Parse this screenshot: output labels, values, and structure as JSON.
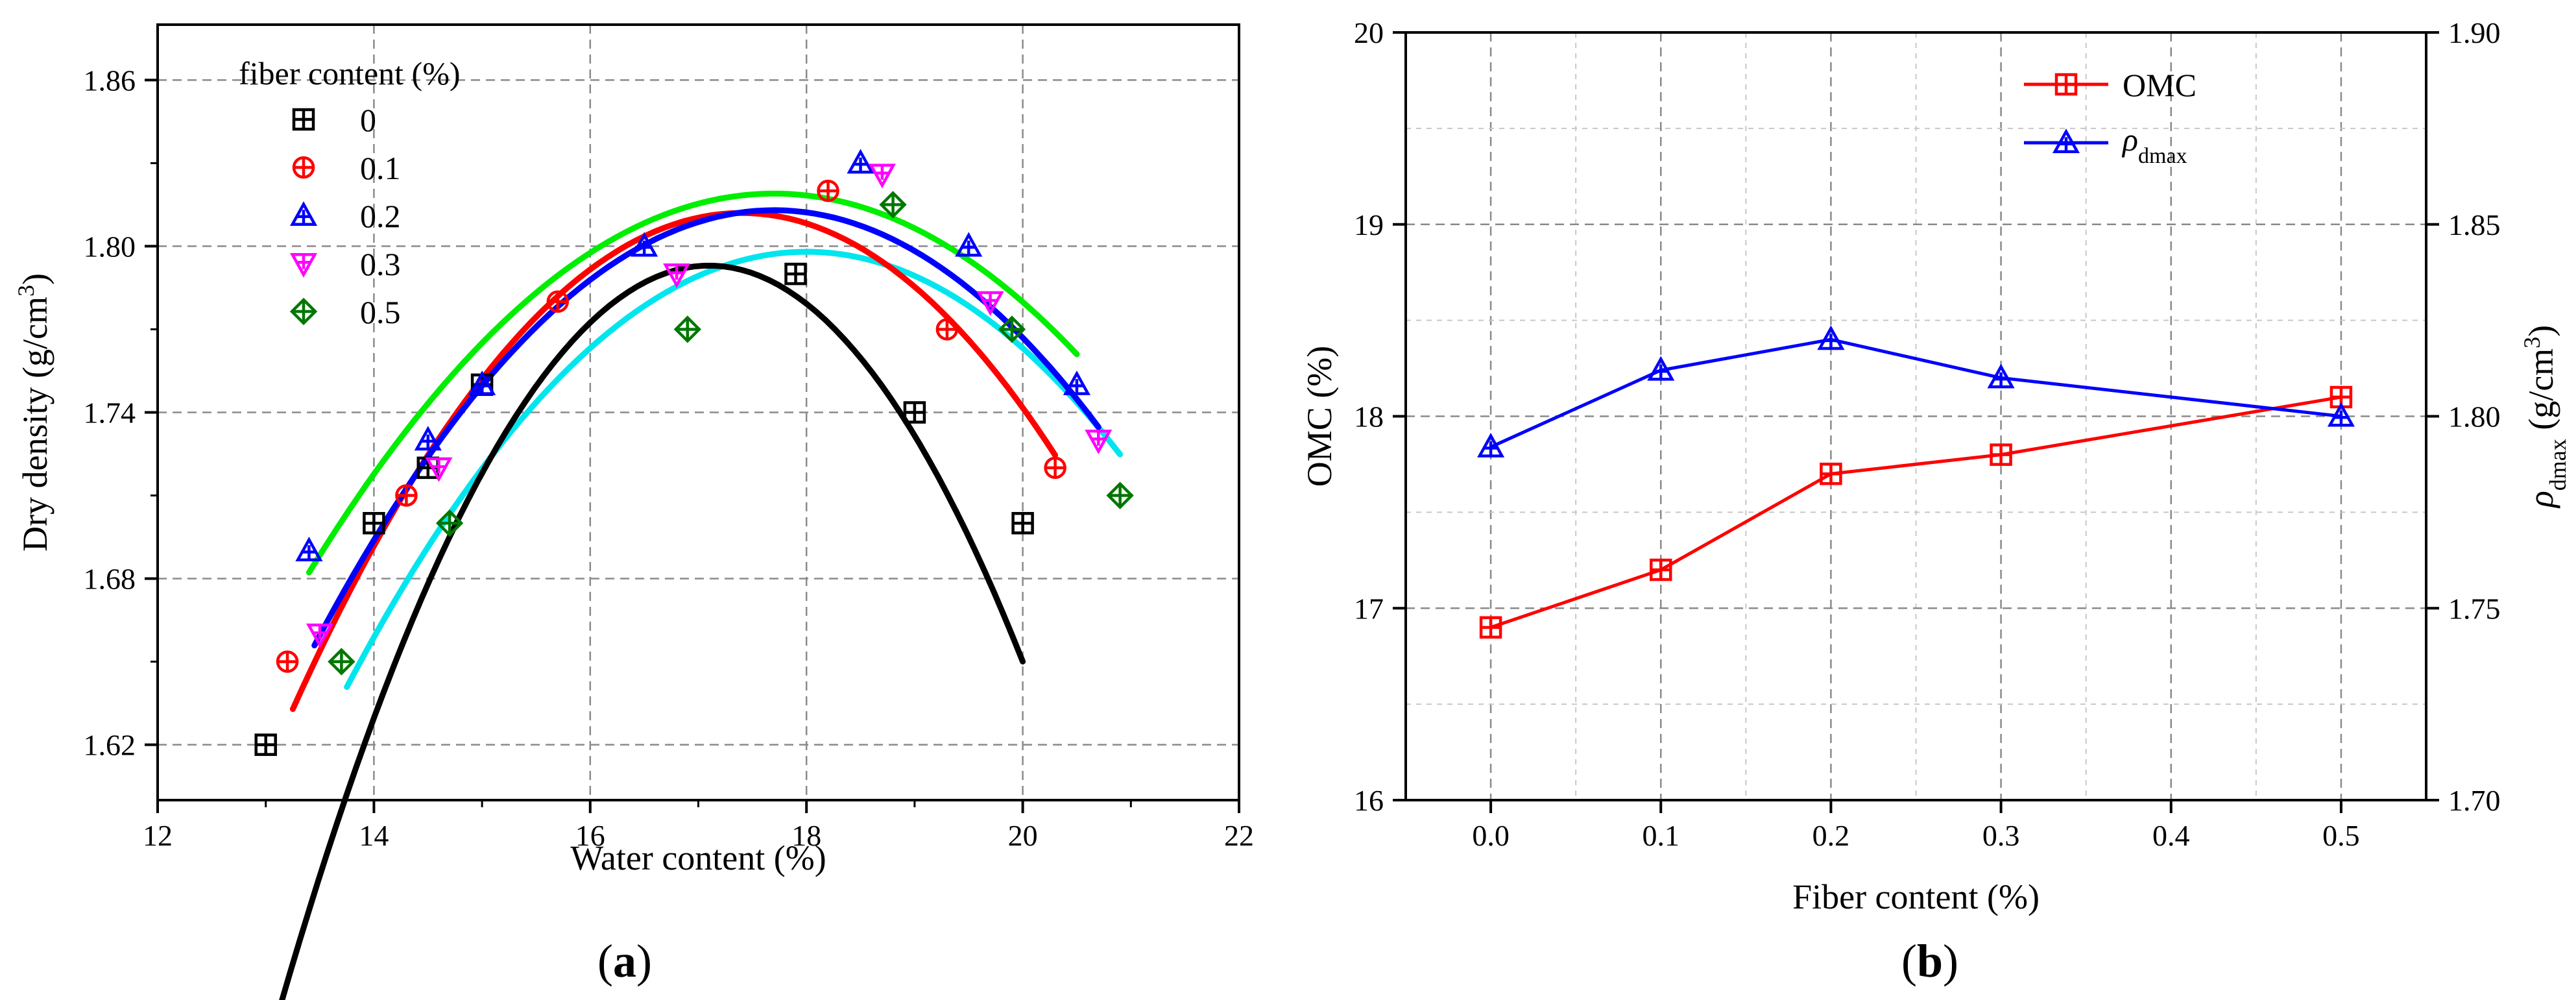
{
  "chart_data": [
    {
      "panel": "(a)",
      "type": "scatter",
      "panel_label": {
        "open": "(",
        "letter": "a",
        "close": ")"
      },
      "xlabel": "Water content (%)",
      "ylabel": {
        "main": "Dry density (g/cm",
        "sup": "3",
        "close": ")"
      },
      "xlim": [
        12,
        22
      ],
      "ylim": [
        1.6,
        1.88
      ],
      "xticks": [
        12,
        14,
        16,
        18,
        20,
        22
      ],
      "xtick_labels": [
        "12",
        "14",
        "16",
        "18",
        "20",
        "22"
      ],
      "yticks": [
        1.62,
        1.68,
        1.74,
        1.8,
        1.86
      ],
      "ytick_labels": [
        "1.62",
        "1.68",
        "1.74",
        "1.80",
        "1.86"
      ],
      "grid": true,
      "legend": {
        "title": "fiber content (%)",
        "position": "top-left"
      },
      "series": [
        {
          "name": "0",
          "label": "0",
          "color": "#000000",
          "marker": "square-plus",
          "x": [
            13.0,
            14.0,
            14.5,
            15.0,
            17.9,
            19.0,
            20.0
          ],
          "y": [
            1.62,
            1.7,
            1.72,
            1.75,
            1.79,
            1.74,
            1.7
          ],
          "fit": {
            "x_range": [
              13.05,
              20.0
            ],
            "peak_x": 17.1,
            "peak_y": 1.793,
            "curvature": -0.017
          }
        },
        {
          "name": "0.1",
          "label": "0.1",
          "color": "#ff0000",
          "marker": "circle-plus",
          "x": [
            13.2,
            14.3,
            15.7,
            18.2,
            19.3,
            20.3
          ],
          "y": [
            1.65,
            1.71,
            1.78,
            1.82,
            1.77,
            1.72
          ],
          "fit": {
            "x_range": [
              13.25,
              20.3
            ],
            "peak_x": 17.4,
            "peak_y": 1.812,
            "curvature": -0.0104
          }
        },
        {
          "name": "0.2",
          "label": "0.2",
          "color": "#0000ff",
          "marker": "triangle-up-plus",
          "x": [
            13.4,
            14.5,
            15.0,
            16.5,
            18.5,
            19.5,
            20.5
          ],
          "y": [
            1.69,
            1.73,
            1.75,
            1.8,
            1.83,
            1.8,
            1.75
          ],
          "fit": {
            "x_range": [
              13.45,
              20.7
            ],
            "peak_x": 17.7,
            "peak_y": 1.813,
            "curvature": -0.0087
          }
        },
        {
          "name": "0.3",
          "label": "0.3",
          "color": "#ff00ff",
          "marker": "triangle-down-plus",
          "x": [
            13.5,
            14.6,
            16.8,
            18.7,
            19.7,
            20.7
          ],
          "y": [
            1.66,
            1.72,
            1.79,
            1.826,
            1.78,
            1.73
          ],
          "fit": null
        },
        {
          "name": "0.5",
          "label": "0.5",
          "color": "#007700",
          "marker": "diamond-plus",
          "x": [
            13.7,
            14.7,
            16.9,
            18.8,
            19.9,
            20.9
          ],
          "y": [
            1.65,
            1.7,
            1.77,
            1.815,
            1.77,
            1.71
          ],
          "fit": null
        }
      ],
      "extra_fits": [
        {
          "color": "#00ee00",
          "x_range": [
            13.4,
            20.5
          ],
          "peak_x": 17.7,
          "peak_y": 1.819,
          "curvature": -0.0074
        },
        {
          "color": "#00e5ee",
          "x_range": [
            13.75,
            20.9
          ],
          "peak_x": 18.0,
          "peak_y": 1.798,
          "curvature": -0.0087
        }
      ]
    },
    {
      "panel": "(b)",
      "type": "line",
      "panel_label": {
        "open": "(",
        "letter": "b",
        "close": ")"
      },
      "xlabel": "Fiber content (%)",
      "ylabel": "OMC (%)",
      "y2label": {
        "rho": "ρ",
        "sub": "dmax",
        "unit": " (g/cm",
        "sup": "3",
        "close": ")"
      },
      "xlim": [
        -0.05,
        0.55
      ],
      "ylim": [
        16,
        20
      ],
      "y2lim": [
        1.7,
        1.9
      ],
      "xticks": [
        0.0,
        0.1,
        0.2,
        0.3,
        0.4,
        0.5
      ],
      "xtick_labels": [
        "0.0",
        "0.1",
        "0.2",
        "0.3",
        "0.4",
        "0.5"
      ],
      "yticks": [
        16,
        17,
        18,
        19,
        20
      ],
      "ytick_labels": [
        "16",
        "17",
        "18",
        "19",
        "20"
      ],
      "y2ticks": [
        1.7,
        1.75,
        1.8,
        1.85,
        1.9
      ],
      "y2tick_labels": [
        "1.70",
        "1.75",
        "1.80",
        "1.85",
        "1.90"
      ],
      "grid": true,
      "legend": {
        "position": "top-right"
      },
      "series": [
        {
          "name": "OMC",
          "label": "OMC",
          "color": "#ff0000",
          "marker": "square-plus",
          "axis": "left",
          "x": [
            0.0,
            0.1,
            0.2,
            0.3,
            0.5
          ],
          "y": [
            16.9,
            17.2,
            17.7,
            17.8,
            18.1
          ]
        },
        {
          "name": "ρdmax",
          "label_main": "ρ",
          "label_sub": "dmax",
          "color": "#0000ff",
          "marker": "triangle-up-plus",
          "axis": "right",
          "x": [
            0.0,
            0.1,
            0.2,
            0.3,
            0.5
          ],
          "y": [
            1.792,
            1.812,
            1.82,
            1.81,
            1.8
          ]
        }
      ]
    }
  ]
}
